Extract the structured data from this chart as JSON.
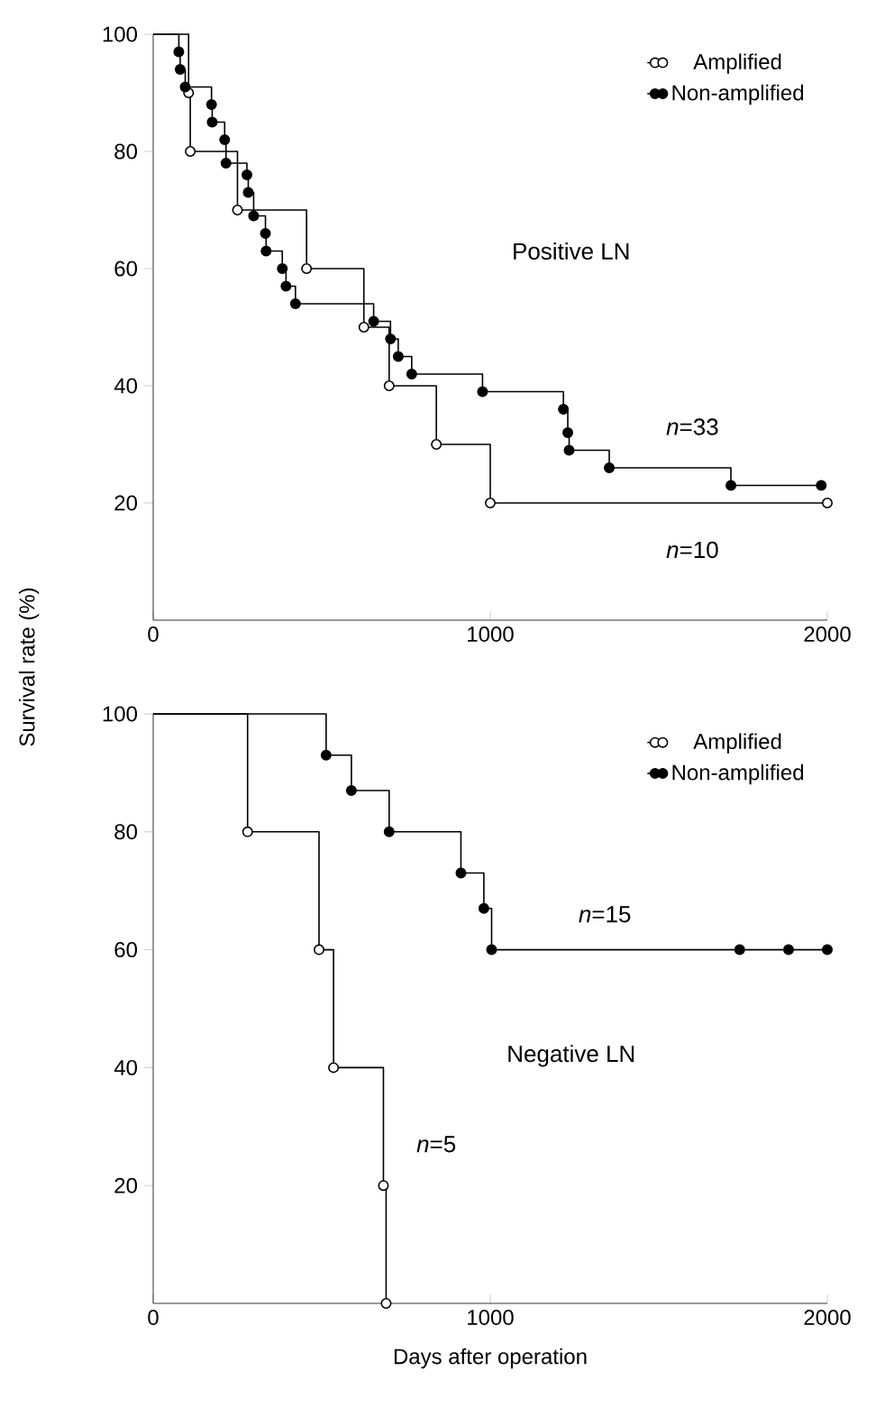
{
  "chart_data": [
    {
      "type": "step",
      "title": "Positive LN",
      "ylabel": "Survival rate (%)",
      "xlim": [
        0,
        2000
      ],
      "xticks": [
        0,
        1000,
        2000
      ],
      "ylim": [
        0,
        100
      ],
      "yticks": [
        20,
        40,
        60,
        80,
        100
      ],
      "legend": "top right",
      "marker": "circle",
      "series": [
        {
          "name": "Amplified",
          "color": "#000000",
          "x": [
            0,
            105,
            110,
            250,
            455,
            625,
            700,
            840,
            1000,
            2000
          ],
          "values": [
            100,
            90,
            80,
            70,
            60,
            50,
            40,
            30,
            20,
            20
          ]
        },
        {
          "name": "Non-amplified",
          "color": "#000000",
          "x": [
            0,
            76,
            80,
            95,
            173,
            175,
            212,
            216,
            278,
            282,
            298,
            333,
            335,
            383,
            394,
            422,
            654,
            704,
            727,
            767,
            977,
            1217,
            1230,
            1234,
            1353,
            1714,
            1982
          ],
          "values": [
            100,
            97,
            94,
            91,
            88,
            85,
            82,
            78,
            76,
            73,
            69,
            66,
            63,
            60,
            57,
            54,
            51,
            48,
            45,
            42,
            39,
            36,
            32,
            29,
            26,
            23,
            23
          ]
        }
      ],
      "annotations": [
        "*n*=33",
        "*n*=10"
      ]
    },
    {
      "type": "step",
      "title": "Negative LN",
      "xlabel": "Days after operation",
      "xlim": [
        0,
        2000
      ],
      "xticks": [
        0,
        1000,
        2000
      ],
      "ylim": [
        0,
        100
      ],
      "yticks": [
        20,
        40,
        60,
        80,
        100
      ],
      "legend": "top right",
      "marker": "circle",
      "series": [
        {
          "name": "Amplified",
          "color": "#000000",
          "x": [
            0,
            280,
            492,
            535,
            683,
            691
          ],
          "values": [
            100,
            80,
            60,
            40,
            20,
            0
          ]
        },
        {
          "name": "Non-amplified",
          "color": "#000000",
          "x": [
            0,
            513,
            588,
            700,
            913,
            981,
            1004,
            1740,
            1885,
            2000
          ],
          "values": [
            100,
            93,
            87,
            80,
            73,
            67,
            60,
            60,
            60,
            60
          ]
        }
      ],
      "annotations": [
        "*n*=15",
        "*n*=5"
      ]
    }
  ]
}
